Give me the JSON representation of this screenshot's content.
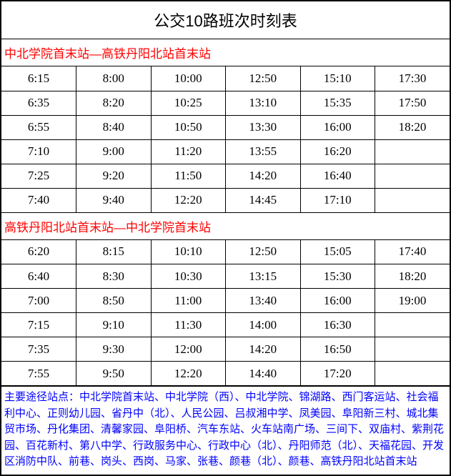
{
  "title": "公交10路班次时刻表",
  "colors": {
    "section_header": "#ff0000",
    "stops_text": "#0000ff",
    "border": "#000000",
    "background": "#ffffff"
  },
  "sections": [
    {
      "header": "中北学院首末站—高铁丹阳北站首末站",
      "rows": [
        [
          "6:15",
          "8:00",
          "10:00",
          "12:50",
          "15:10",
          "17:30"
        ],
        [
          "6:35",
          "8:20",
          "10:25",
          "13:10",
          "15:35",
          "17:50"
        ],
        [
          "6:55",
          "8:40",
          "10:50",
          "13:30",
          "16:00",
          "18:20"
        ],
        [
          "7:10",
          "9:00",
          "11:20",
          "13:55",
          "16:20",
          ""
        ],
        [
          "7:25",
          "9:20",
          "11:50",
          "14:20",
          "16:40",
          ""
        ],
        [
          "7:40",
          "9:40",
          "12:20",
          "14:45",
          "17:10",
          ""
        ]
      ]
    },
    {
      "header": "高铁丹阳北站首末站—中北学院首末站",
      "rows": [
        [
          "6:20",
          "8:15",
          "10:10",
          "12:50",
          "15:05",
          "17:40"
        ],
        [
          "6:40",
          "8:30",
          "10:30",
          "13:15",
          "15:30",
          "18:20"
        ],
        [
          "7:00",
          "8:50",
          "11:00",
          "13:40",
          "16:00",
          "19:00"
        ],
        [
          "7:15",
          "9:10",
          "11:30",
          "14:00",
          "16:30",
          ""
        ],
        [
          "7:35",
          "9:30",
          "12:00",
          "14:20",
          "16:50",
          ""
        ],
        [
          "7:55",
          "9:50",
          "12:20",
          "14:40",
          "17:20",
          ""
        ]
      ]
    }
  ],
  "stops": "主要途径站点：中北学院首末站、中北学院（西）、中北学院、锦湖路、西门客运站、社会福利中心、正则幼儿园、省丹中（北）、人民公园、吕叔湘中学、凤美园、阜阳新三村、城北集贸市场、丹化集团、清馨家园、阜阳桥、汽车东站、火车站南广场、三间下、双庙村、紫荆花园、百花新村、第八中学、行政服务中心、行政中心（北）、丹阳师范（北）、天福花园、开发区消防中队、前巷、岗头、西岗、马家、张巷、颜巷（北）、颜巷、高铁丹阳北站首末站"
}
